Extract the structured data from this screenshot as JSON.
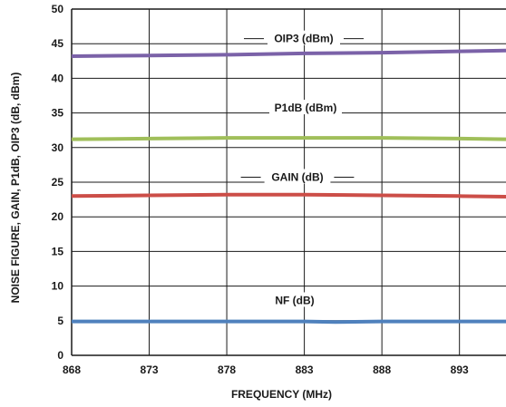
{
  "chart_data": {
    "type": "line",
    "xlabel": "FREQUENCY (MHz)",
    "ylabel": "NOISE FIGURE, GAIN, P1dB, OIP3 (dB, dBm)",
    "xlim": [
      868,
      896
    ],
    "ylim": [
      0,
      50
    ],
    "xticks": [
      "868",
      "873",
      "878",
      "883",
      "888",
      "893"
    ],
    "yticks": [
      "0",
      "5",
      "10",
      "15",
      "20",
      "25",
      "30",
      "35",
      "40",
      "45",
      "50"
    ],
    "grid": true,
    "series": [
      {
        "name": "OIP3 (dBm)",
        "color": "#7b62a8",
        "x": [
          868,
          873,
          878,
          883,
          888,
          893,
          896
        ],
        "y": [
          43.2,
          43.3,
          43.4,
          43.6,
          43.7,
          43.9,
          44.0
        ]
      },
      {
        "name": "P1dB (dBm)",
        "color": "#a0bf5a",
        "x": [
          868,
          873,
          878,
          883,
          888,
          893,
          896
        ],
        "y": [
          31.2,
          31.3,
          31.4,
          31.4,
          31.4,
          31.3,
          31.2
        ]
      },
      {
        "name": "GAIN (dB)",
        "color": "#cc4e48",
        "x": [
          868,
          873,
          878,
          883,
          888,
          893,
          896
        ],
        "y": [
          23.0,
          23.1,
          23.2,
          23.2,
          23.1,
          23.0,
          22.9
        ]
      },
      {
        "name": "NF (dB)",
        "color": "#4f81bd",
        "x": [
          868,
          873,
          878,
          883,
          885,
          888,
          893,
          896
        ],
        "y": [
          4.9,
          4.9,
          4.9,
          4.9,
          4.8,
          4.9,
          4.9,
          4.9
        ]
      }
    ]
  }
}
